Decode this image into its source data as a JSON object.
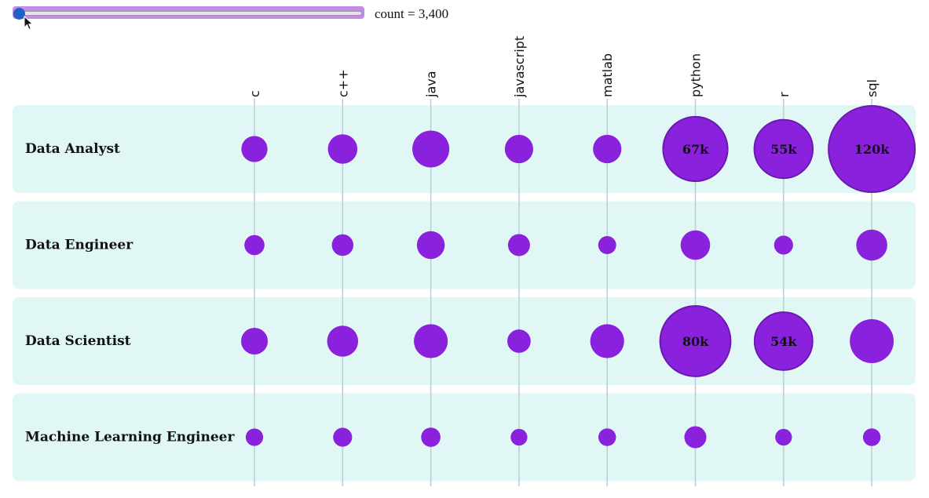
{
  "control": {
    "label_prefix": "count = ",
    "value_text": "3,400",
    "value": 3400
  },
  "colors": {
    "band": "#e1f7f6",
    "bubble": "#8a22dd",
    "bubble_stroke": "#6a1ab0",
    "axis_line": "#b7cfd2",
    "slider_fill": "#c38ae8",
    "slider_thumb": "#1e62c8"
  },
  "chart_data": {
    "type": "bubble-matrix",
    "rows": [
      "Data Analyst",
      "Data Engineer",
      "Data Scientist",
      "Machine Learning Engineer"
    ],
    "columns": [
      "c",
      "c++",
      "java",
      "javascript",
      "matlab",
      "python",
      "r",
      "sql"
    ],
    "values": [
      [
        11000,
        14000,
        22000,
        13000,
        13000,
        67000,
        55000,
        120000
      ],
      [
        6500,
        7500,
        12500,
        7800,
        5200,
        14000,
        5800,
        15500
      ],
      [
        11500,
        15500,
        18500,
        8800,
        18500,
        80000,
        54000,
        31000
      ],
      [
        4900,
        5800,
        6000,
        4500,
        5000,
        7800,
        4500,
        5000
      ]
    ],
    "labels": [
      [
        "",
        "",
        "",
        "",
        "",
        "67k",
        "55k",
        "120k"
      ],
      [
        "",
        "",
        "",
        "",
        "",
        "",
        "",
        ""
      ],
      [
        "",
        "",
        "",
        "",
        "",
        "80k",
        "54k",
        ""
      ],
      [
        "",
        "",
        "",
        "",
        "",
        "",
        "",
        ""
      ]
    ],
    "label_threshold": 50000
  }
}
